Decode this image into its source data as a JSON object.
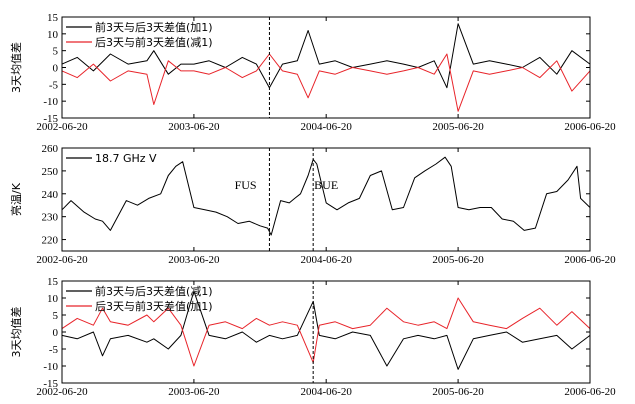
{
  "chart_data": [
    {
      "type": "line",
      "ylabel": "3天均值差",
      "ylim": [
        -15,
        15
      ],
      "yticks": [
        -15,
        -10,
        -5,
        0,
        5,
        10,
        15
      ],
      "xlim": [
        "2002-06-20",
        "2006-06-20"
      ],
      "xticks": [
        "2002-06-20",
        "2003-06-20",
        "2004-06-20",
        "2005-06-20",
        "2006-06-20"
      ],
      "legend_position": "top-left",
      "vlines": [
        "2004-01-15"
      ],
      "series": [
        {
          "name": "前3天与后3天差值(加1)",
          "color": "#000000",
          "x": [
            "2002-06-20",
            "2002-08-01",
            "2002-09-15",
            "2002-11-01",
            "2002-12-20",
            "2003-02-10",
            "2003-03-01",
            "2003-04-10",
            "2003-05-15",
            "2003-06-20",
            "2003-08-01",
            "2003-09-15",
            "2003-11-01",
            "2003-12-10",
            "2004-01-15",
            "2004-02-20",
            "2004-04-01",
            "2004-05-01",
            "2004-06-01",
            "2004-07-15",
            "2004-09-01",
            "2004-10-20",
            "2004-12-05",
            "2005-01-20",
            "2005-03-01",
            "2005-04-15",
            "2005-05-20",
            "2005-06-20",
            "2005-08-01",
            "2005-09-15",
            "2005-11-01",
            "2005-12-15",
            "2006-02-01",
            "2006-03-20",
            "2006-05-01",
            "2006-06-20"
          ],
          "y": [
            1,
            3,
            -1,
            4,
            1,
            2,
            5,
            -2,
            1,
            1,
            2,
            0,
            3,
            1,
            -6,
            1,
            2,
            11,
            1,
            2,
            0,
            1,
            2,
            1,
            0,
            2,
            -6,
            13,
            1,
            2,
            1,
            0,
            3,
            -2,
            5,
            1
          ]
        },
        {
          "name": "后3天与前3天差值(减1)",
          "color": "#e8242a",
          "x": [
            "2002-06-20",
            "2002-08-01",
            "2002-09-15",
            "2002-11-01",
            "2002-12-20",
            "2003-02-10",
            "2003-03-01",
            "2003-04-10",
            "2003-05-15",
            "2003-06-20",
            "2003-08-01",
            "2003-09-15",
            "2003-11-01",
            "2003-12-10",
            "2004-01-15",
            "2004-02-20",
            "2004-04-01",
            "2004-05-01",
            "2004-06-01",
            "2004-07-15",
            "2004-09-01",
            "2004-10-20",
            "2004-12-05",
            "2005-01-20",
            "2005-03-01",
            "2005-04-15",
            "2005-05-20",
            "2005-06-20",
            "2005-08-01",
            "2005-09-15",
            "2005-11-01",
            "2005-12-15",
            "2006-02-01",
            "2006-03-20",
            "2006-05-01",
            "2006-06-20"
          ],
          "y": [
            -1,
            -3,
            1,
            -4,
            -1,
            -2,
            -11,
            2,
            -1,
            -1,
            -2,
            0,
            -3,
            -1,
            4,
            -1,
            -2,
            -9,
            -1,
            -2,
            0,
            -1,
            -2,
            -1,
            0,
            -2,
            4,
            -13,
            -1,
            -2,
            -1,
            0,
            -3,
            2,
            -7,
            -1
          ]
        }
      ]
    },
    {
      "type": "line",
      "ylabel": "亮温/K",
      "ylim": [
        215,
        260
      ],
      "yticks": [
        220,
        230,
        240,
        250,
        260
      ],
      "xlim": [
        "2002-06-20",
        "2006-06-20"
      ],
      "xticks": [
        "2002-06-20",
        "2003-06-20",
        "2004-06-20",
        "2005-06-20",
        "2006-06-20"
      ],
      "legend_position": "top-left",
      "vlines": [
        "2004-01-15",
        "2004-05-15"
      ],
      "annotations": [
        {
          "text": "FUS",
          "x": "2003-11-10",
          "y": 242
        },
        {
          "text": "BUE",
          "x": "2004-06-20",
          "y": 242
        }
      ],
      "series": [
        {
          "name": "18.7 GHz V",
          "color": "#000000",
          "x": [
            "2002-06-20",
            "2002-07-15",
            "2002-08-20",
            "2002-09-20",
            "2002-10-10",
            "2002-11-01",
            "2002-12-15",
            "2003-01-15",
            "2003-02-15",
            "2003-03-20",
            "2003-04-10",
            "2003-05-01",
            "2003-05-20",
            "2003-06-20",
            "2003-07-20",
            "2003-08-20",
            "2003-09-20",
            "2003-10-20",
            "2003-11-20",
            "2003-12-20",
            "2004-01-10",
            "2004-01-20",
            "2004-02-15",
            "2004-03-10",
            "2004-03-25",
            "2004-04-10",
            "2004-05-01",
            "2004-05-15",
            "2004-05-25",
            "2004-06-20",
            "2004-07-20",
            "2004-08-20",
            "2004-09-20",
            "2004-10-20",
            "2004-11-20",
            "2004-12-20",
            "2005-01-20",
            "2005-02-20",
            "2005-03-20",
            "2005-04-20",
            "2005-05-15",
            "2005-06-01",
            "2005-06-20",
            "2005-07-20",
            "2005-08-20",
            "2005-09-20",
            "2005-10-20",
            "2005-11-20",
            "2005-12-20",
            "2006-01-20",
            "2006-02-20",
            "2006-03-20",
            "2006-04-20",
            "2006-05-15",
            "2006-05-25",
            "2006-06-20"
          ],
          "y": [
            233,
            237,
            232,
            229,
            228,
            224,
            237,
            235,
            238,
            240,
            248,
            252,
            254,
            234,
            233,
            232,
            230,
            227,
            228,
            226,
            225,
            222,
            237,
            236,
            238,
            240,
            248,
            255,
            253,
            236,
            233,
            236,
            238,
            248,
            250,
            233,
            234,
            247,
            250,
            253,
            256,
            252,
            234,
            233,
            234,
            234,
            229,
            228,
            224,
            225,
            240,
            241,
            246,
            252,
            238,
            234
          ]
        }
      ]
    },
    {
      "type": "line",
      "ylabel": "3天均值差",
      "ylim": [
        -15,
        15
      ],
      "yticks": [
        -15,
        -10,
        -5,
        0,
        5,
        10,
        15
      ],
      "xlim": [
        "2002-06-20",
        "2006-06-20"
      ],
      "xticks": [
        "2002-06-20",
        "2003-06-20",
        "2004-06-20",
        "2005-06-20",
        "2006-06-20"
      ],
      "legend_position": "top-left",
      "vlines": [
        "2004-05-15"
      ],
      "series": [
        {
          "name": "前3天与后3天差值(减1)",
          "color": "#000000",
          "x": [
            "2002-06-20",
            "2002-08-01",
            "2002-09-15",
            "2002-10-10",
            "2002-11-01",
            "2002-12-20",
            "2003-02-10",
            "2003-03-01",
            "2003-04-10",
            "2003-05-15",
            "2003-06-20",
            "2003-08-01",
            "2003-09-15",
            "2003-11-01",
            "2003-12-10",
            "2004-01-15",
            "2004-02-20",
            "2004-04-01",
            "2004-05-15",
            "2004-06-01",
            "2004-07-15",
            "2004-09-01",
            "2004-10-20",
            "2004-12-05",
            "2005-01-20",
            "2005-03-01",
            "2005-04-15",
            "2005-05-20",
            "2005-06-20",
            "2005-08-01",
            "2005-09-15",
            "2005-11-01",
            "2005-12-15",
            "2006-02-01",
            "2006-03-20",
            "2006-05-01",
            "2006-06-20"
          ],
          "y": [
            -1,
            -2,
            0,
            -7,
            -2,
            -1,
            -3,
            -2,
            -5,
            -1,
            12,
            -1,
            -2,
            0,
            -3,
            -1,
            -2,
            -1,
            9,
            -1,
            -2,
            0,
            -1,
            -10,
            -2,
            -1,
            -2,
            -1,
            -11,
            -2,
            -1,
            0,
            -3,
            -2,
            -1,
            -5,
            -1
          ]
        },
        {
          "name": "后3天与前3天差值(加1)",
          "color": "#e8242a",
          "x": [
            "2002-06-20",
            "2002-08-01",
            "2002-09-15",
            "2002-10-10",
            "2002-11-01",
            "2002-12-20",
            "2003-02-10",
            "2003-03-01",
            "2003-04-10",
            "2003-05-15",
            "2003-06-20",
            "2003-08-01",
            "2003-09-15",
            "2003-11-01",
            "2003-12-10",
            "2004-01-15",
            "2004-02-20",
            "2004-04-01",
            "2004-05-15",
            "2004-06-01",
            "2004-07-15",
            "2004-09-01",
            "2004-10-20",
            "2004-12-05",
            "2005-01-20",
            "2005-03-01",
            "2005-04-15",
            "2005-05-20",
            "2005-06-20",
            "2005-08-01",
            "2005-09-15",
            "2005-11-01",
            "2005-12-15",
            "2006-02-01",
            "2006-03-20",
            "2006-05-01",
            "2006-06-20"
          ],
          "y": [
            1,
            4,
            2,
            7,
            3,
            2,
            5,
            3,
            7,
            2,
            -10,
            2,
            3,
            1,
            4,
            2,
            3,
            2,
            -9,
            2,
            3,
            1,
            2,
            7,
            3,
            2,
            3,
            1,
            10,
            3,
            2,
            1,
            4,
            7,
            2,
            6,
            1
          ]
        }
      ]
    }
  ]
}
